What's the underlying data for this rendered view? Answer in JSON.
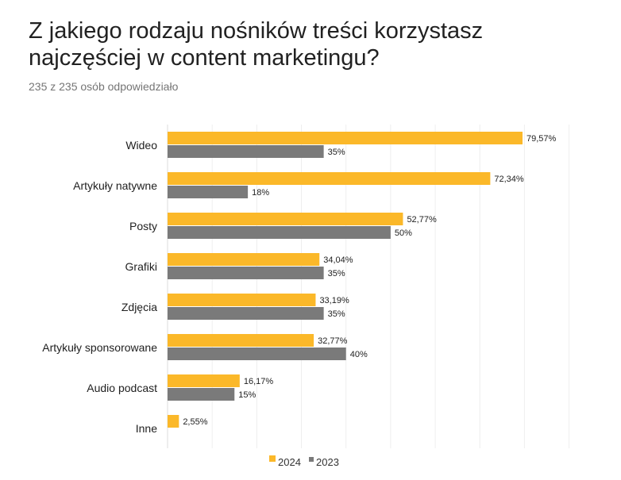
{
  "title": "Z jakiego rodzaju nośników treści korzystasz najczęściej w content marketingu?",
  "subtitle": "235 z 235 osób odpowiedziało",
  "chart_data": {
    "type": "bar",
    "orientation": "horizontal",
    "categories": [
      "Wideo",
      "Artykuły natywne",
      "Posty",
      "Grafiki",
      "Zdjęcia",
      "Artykuły sponsorowane",
      "Audio podcast",
      "Inne"
    ],
    "series": [
      {
        "name": "2024",
        "color": "#FBB829",
        "values": [
          79.57,
          72.34,
          52.77,
          34.04,
          33.19,
          32.77,
          16.17,
          2.55
        ],
        "labels": [
          "79,57%",
          "72,34%",
          "52,77%",
          "34,04%",
          "33,19%",
          "32,77%",
          "16,17%",
          "2,55%"
        ]
      },
      {
        "name": "2023",
        "color": "#7A7A7A",
        "values": [
          35,
          18,
          50,
          35,
          35,
          40,
          15,
          null
        ],
        "labels": [
          "35%",
          "18%",
          "50%",
          "35%",
          "35%",
          "40%",
          "15%",
          null
        ]
      }
    ],
    "xlim": [
      0,
      90
    ],
    "grid": true,
    "legend": "bottom"
  }
}
